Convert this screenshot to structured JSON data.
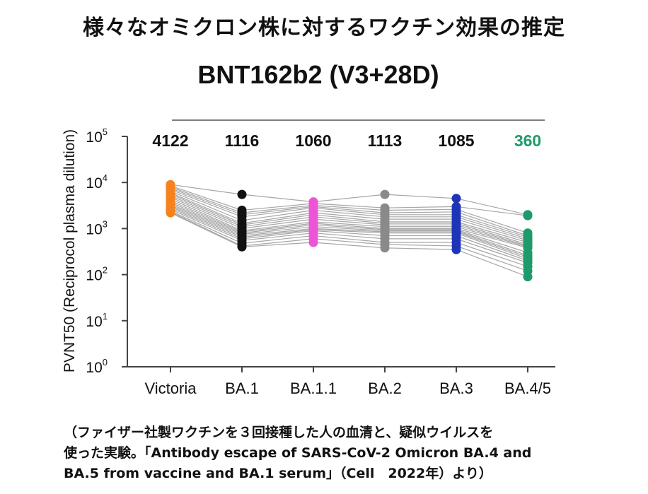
{
  "page": {
    "title": "様々なオミクロン株に対するワクチン効果の推定",
    "caption_lines": [
      "（ファイザー社製ワクチンを３回接種した人の血清と、疑似ウイルスを",
      "使った実験。「Antibody escape of SARS-CoV-2 Omicron BA.4 and",
      "BA.5 from vaccine and BA.1 serum」（Cell　2022年）より）"
    ]
  },
  "chart_data": {
    "type": "scatter",
    "title": "BNT162b2 (V3+28D)",
    "ylabel": "PVNT50 (Reciprocol plasma dilution)",
    "yscale": "log",
    "ylim": [
      1,
      100000
    ],
    "yticks": [
      {
        "value": 1,
        "base": "10",
        "exp": "0"
      },
      {
        "value": 10,
        "base": "10",
        "exp": "1"
      },
      {
        "value": 100,
        "base": "10",
        "exp": "2"
      },
      {
        "value": 1000,
        "base": "10",
        "exp": "3"
      },
      {
        "value": 10000,
        "base": "10",
        "exp": "4"
      },
      {
        "value": 100000,
        "base": "10",
        "exp": "5"
      }
    ],
    "categories": [
      "Victoria",
      "BA.1",
      "BA.1.1",
      "BA.2",
      "BA.3",
      "BA.4/5"
    ],
    "geomean_labels": [
      "4122",
      "1116",
      "1060",
      "1113",
      "1085",
      "360"
    ],
    "colors": [
      "#f5821f",
      "#111111",
      "#ee55d6",
      "#8a8a8a",
      "#1f35b8",
      "#1f9a6a"
    ],
    "line_color": "#a6a6a6",
    "grid": false,
    "subjects": [
      [
        9000,
        5500,
        3800,
        5500,
        4500,
        2000
      ],
      [
        8500,
        2500,
        3500,
        2800,
        3000,
        1900
      ],
      [
        8000,
        2200,
        3200,
        2500,
        2600,
        800
      ],
      [
        7500,
        2000,
        3000,
        2200,
        2300,
        700
      ],
      [
        7000,
        1800,
        2800,
        2000,
        2000,
        650
      ],
      [
        6500,
        1500,
        2500,
        1800,
        1800,
        600
      ],
      [
        6000,
        1300,
        2200,
        1600,
        1600,
        550
      ],
      [
        5600,
        1200,
        2000,
        1400,
        1400,
        500
      ],
      [
        5200,
        1100,
        1800,
        1300,
        1300,
        450
      ],
      [
        4800,
        1000,
        1600,
        1200,
        1200,
        420
      ],
      [
        4400,
        900,
        1400,
        1100,
        1100,
        400
      ],
      [
        4000,
        850,
        1300,
        1000,
        1000,
        380
      ],
      [
        3700,
        800,
        1200,
        950,
        950,
        300
      ],
      [
        3400,
        750,
        1100,
        900,
        900,
        260
      ],
      [
        3200,
        700,
        1000,
        850,
        850,
        240
      ],
      [
        3000,
        650,
        950,
        800,
        800,
        220
      ],
      [
        2800,
        600,
        900,
        700,
        700,
        200
      ],
      [
        2600,
        550,
        800,
        600,
        600,
        180
      ],
      [
        2400,
        480,
        700,
        500,
        500,
        150
      ],
      [
        2300,
        420,
        600,
        450,
        420,
        120
      ],
      [
        2200,
        400,
        500,
        380,
        350,
        90
      ]
    ]
  }
}
